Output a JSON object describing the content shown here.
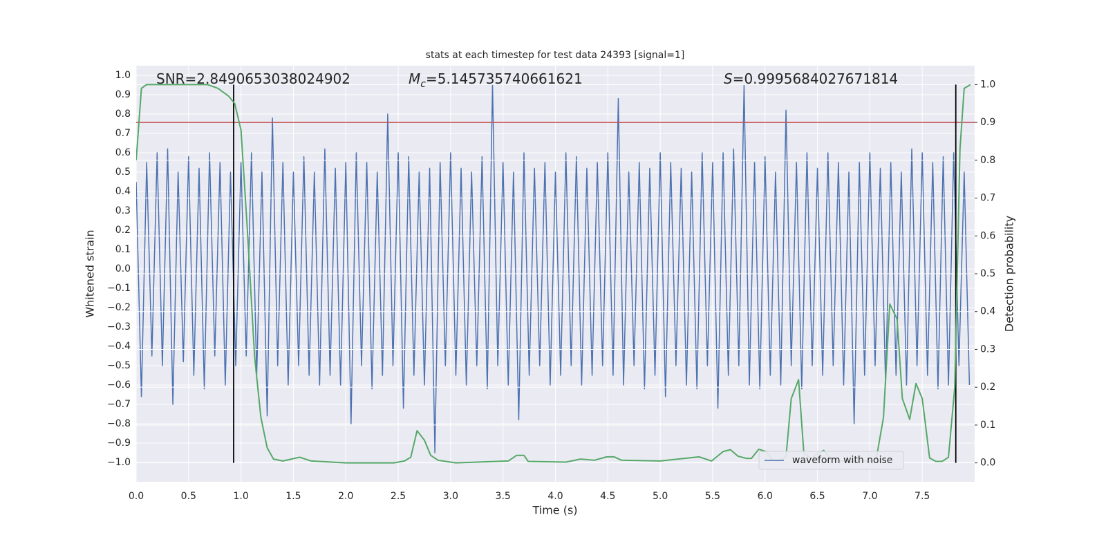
{
  "chart_data": {
    "type": "line",
    "title": "stats at each timestep for test data 24393 [signal=1]",
    "xlabel": "Time (s)",
    "ylabel": "Whitened strain",
    "y2label": "Detection probability",
    "xlim": [
      0,
      8
    ],
    "ylim": [
      -1.1,
      1.05
    ],
    "y2lim": [
      -0.05,
      1.05
    ],
    "xticks": [
      {
        "value": 0,
        "label": "0.0"
      },
      0.5,
      {
        "value": 1,
        "label": "1.0"
      },
      1.5,
      {
        "value": 2,
        "label": "2.0"
      },
      2.5,
      {
        "value": 3,
        "label": "3.0"
      },
      3.5,
      {
        "value": 4,
        "label": "4.0"
      },
      4.5,
      {
        "value": 5,
        "label": "5.0"
      },
      5.5,
      {
        "value": 6,
        "label": "6.0"
      },
      6.5,
      {
        "value": 7,
        "label": "7.0"
      },
      7.5
    ],
    "yticks": [
      {
        "value": -1.0,
        "label": "−1.0"
      },
      {
        "value": -0.9,
        "label": "−0.9"
      },
      {
        "value": -0.8,
        "label": "−0.8"
      },
      {
        "value": -0.7,
        "label": "−0.7"
      },
      {
        "value": -0.6,
        "label": "−0.6"
      },
      {
        "value": -0.5,
        "label": "−0.5"
      },
      {
        "value": -0.4,
        "label": "−0.4"
      },
      {
        "value": -0.3,
        "label": "−0.3"
      },
      {
        "value": -0.2,
        "label": "−0.2"
      },
      {
        "value": -0.1,
        "label": "−0.1"
      },
      {
        "value": 0,
        "label": "0.0"
      },
      0.1,
      0.2,
      0.3,
      0.4,
      0.5,
      0.6,
      0.7,
      0.8,
      0.9,
      {
        "value": 1,
        "label": "1.0"
      }
    ],
    "y2ticks": [
      {
        "value": 0,
        "label": "0.0"
      },
      0.1,
      0.2,
      0.3,
      0.4,
      0.5,
      0.6,
      0.7,
      0.8,
      0.9,
      {
        "value": 1,
        "label": "1.0"
      }
    ],
    "grid": true,
    "legend": "lower right",
    "series": [
      {
        "name": "waveform with noise",
        "color": "#4c72b0",
        "x": [
          0,
          0.05,
          0.1,
          0.15,
          0.2,
          0.25,
          0.3,
          0.35,
          0.4,
          0.45,
          0.5,
          0.55,
          0.6,
          0.65,
          0.7,
          0.75,
          0.8,
          0.85,
          0.9,
          0.95,
          1,
          1.05,
          1.1,
          1.15,
          1.2,
          1.25,
          1.3,
          1.35,
          1.4,
          1.45,
          1.5,
          1.55,
          1.6,
          1.65,
          1.7,
          1.75,
          1.8,
          1.85,
          1.9,
          1.95,
          2,
          2.05,
          2.1,
          2.15,
          2.2,
          2.25,
          2.3,
          2.35,
          2.4,
          2.45,
          2.5,
          2.55,
          2.6,
          2.65,
          2.7,
          2.75,
          2.8,
          2.85,
          2.9,
          2.95,
          3,
          3.05,
          3.1,
          3.15,
          3.2,
          3.25,
          3.3,
          3.35,
          3.4,
          3.45,
          3.5,
          3.55,
          3.6,
          3.65,
          3.7,
          3.75,
          3.8,
          3.85,
          3.9,
          3.95,
          4,
          4.05,
          4.1,
          4.15,
          4.2,
          4.25,
          4.3,
          4.35,
          4.4,
          4.45,
          4.5,
          4.55,
          4.6,
          4.65,
          4.7,
          4.75,
          4.8,
          4.85,
          4.9,
          4.95,
          5,
          5.05,
          5.1,
          5.15,
          5.2,
          5.25,
          5.3,
          5.35,
          5.4,
          5.45,
          5.5,
          5.55,
          5.6,
          5.65,
          5.7,
          5.75,
          5.8,
          5.85,
          5.9,
          5.95,
          6,
          6.05,
          6.1,
          6.15,
          6.2,
          6.25,
          6.3,
          6.35,
          6.4,
          6.45,
          6.5,
          6.55,
          6.6,
          6.65,
          6.7,
          6.75,
          6.8,
          6.85,
          6.9,
          6.95,
          7,
          7.05,
          7.1,
          7.15,
          7.2,
          7.25,
          7.3,
          7.35,
          7.4,
          7.45,
          7.5,
          7.55,
          7.6,
          7.65,
          7.7,
          7.75,
          7.8,
          7.85,
          7.9,
          7.95
        ],
        "values": [
          0.45,
          -0.66,
          0.55,
          -0.45,
          0.6,
          -0.5,
          0.62,
          -0.7,
          0.5,
          -0.48,
          0.58,
          -0.55,
          0.52,
          -0.62,
          0.6,
          -0.45,
          0.55,
          -0.6,
          0.5,
          -0.5,
          0.55,
          -0.45,
          0.6,
          -0.55,
          0.5,
          -0.76,
          0.78,
          -0.5,
          0.55,
          -0.6,
          0.5,
          -0.5,
          0.58,
          -0.55,
          0.5,
          -0.6,
          0.62,
          -0.55,
          0.52,
          -0.6,
          0.55,
          -0.8,
          0.6,
          -0.5,
          0.55,
          -0.62,
          0.5,
          -0.55,
          0.8,
          -0.5,
          0.6,
          -0.72,
          0.58,
          -0.55,
          0.5,
          -0.6,
          0.52,
          -0.95,
          0.55,
          -0.5,
          0.6,
          -0.55,
          0.52,
          -0.6,
          0.5,
          -0.5,
          0.58,
          -0.62,
          0.95,
          -0.5,
          0.55,
          -0.6,
          0.5,
          -0.78,
          0.6,
          -0.55,
          0.52,
          -0.5,
          0.55,
          -0.6,
          0.5,
          -0.55,
          0.6,
          -0.5,
          0.58,
          -0.6,
          0.52,
          -0.55,
          0.55,
          -0.5,
          0.6,
          -0.55,
          0.88,
          -0.6,
          0.5,
          -0.5,
          0.55,
          -0.62,
          0.52,
          -0.55,
          0.6,
          -0.66,
          0.55,
          -0.5,
          0.52,
          -0.6,
          0.5,
          -0.62,
          0.6,
          -0.5,
          0.55,
          -0.72,
          0.6,
          -0.55,
          0.62,
          -0.5,
          0.95,
          -0.6,
          0.55,
          -0.62,
          0.58,
          -0.55,
          0.5,
          -0.6,
          0.82,
          -0.5,
          0.55,
          -0.62,
          0.6,
          -0.5,
          0.52,
          -0.55,
          0.6,
          -0.5,
          0.55,
          -0.6,
          0.5,
          -0.8,
          0.55,
          -0.55,
          0.6,
          -0.5,
          0.52,
          -0.6,
          0.55,
          -0.55,
          0.5,
          -0.6,
          0.62,
          -0.5,
          0.6,
          -0.55,
          0.55,
          -0.62,
          0.58,
          -0.6,
          0.6,
          -0.5,
          0.5,
          -0.6
        ]
      },
      {
        "color": "#55a868",
        "axis": "y2",
        "x": [
          0,
          0.05,
          0.1,
          0.68,
          0.78,
          0.88,
          0.94,
          1.0,
          1.06,
          1.13,
          1.19,
          1.25,
          1.31,
          1.4,
          1.48,
          1.56,
          1.67,
          2.0,
          2.46,
          2.56,
          2.62,
          2.68,
          2.75,
          2.81,
          2.88,
          3.05,
          3.55,
          3.63,
          3.7,
          3.74,
          4.1,
          4.24,
          4.37,
          4.49,
          4.56,
          4.63,
          5.0,
          5.37,
          5.49,
          5.6,
          5.67,
          5.74,
          5.82,
          5.87,
          5.94,
          6.01,
          6.07,
          6.13,
          6.2,
          6.25,
          6.32,
          6.37,
          6.44,
          6.5,
          6.56,
          6.62,
          6.69,
          7.0,
          7.06,
          7.13,
          7.19,
          7.26,
          7.31,
          7.38,
          7.44,
          7.5,
          7.57,
          7.63,
          7.69,
          7.75,
          7.81,
          7.86,
          7.9,
          7.96
        ],
        "values": [
          0.8,
          0.99,
          1.0,
          1.0,
          0.99,
          0.97,
          0.95,
          0.88,
          0.62,
          0.28,
          0.12,
          0.04,
          0.01,
          0.005,
          0.01,
          0.015,
          0.005,
          0.0,
          0.0,
          0.005,
          0.015,
          0.085,
          0.06,
          0.02,
          0.007,
          0.0,
          0.005,
          0.02,
          0.02,
          0.004,
          0.002,
          0.01,
          0.007,
          0.016,
          0.016,
          0.007,
          0.005,
          0.016,
          0.005,
          0.03,
          0.035,
          0.018,
          0.012,
          0.012,
          0.036,
          0.03,
          0.008,
          0.005,
          0.016,
          0.17,
          0.22,
          0.026,
          0.011,
          0.024,
          0.033,
          0.013,
          0.005,
          0.005,
          0.009,
          0.12,
          0.42,
          0.38,
          0.17,
          0.115,
          0.21,
          0.17,
          0.013,
          0.004,
          0.004,
          0.015,
          0.2,
          0.83,
          0.99,
          1.0
        ]
      }
    ],
    "hlines": [
      {
        "value": 0.9,
        "color": "#c44e52",
        "axis": "y2"
      }
    ],
    "vlines": [
      {
        "value": 0.93,
        "ymin": 0,
        "ymax": 1,
        "color": "#000000",
        "axis": "y2"
      },
      {
        "value": 7.82,
        "ymin": 0,
        "ymax": 1,
        "color": "#000000",
        "axis": "y2"
      }
    ],
    "annotations": [
      {
        "text": "SNR=2.8490653038024902"
      },
      {
        "symbol": "M",
        "subscript": "c",
        "text": "=5.145735740661621"
      },
      {
        "symbol": "S",
        "text": "=0.9995684027671814"
      }
    ]
  }
}
